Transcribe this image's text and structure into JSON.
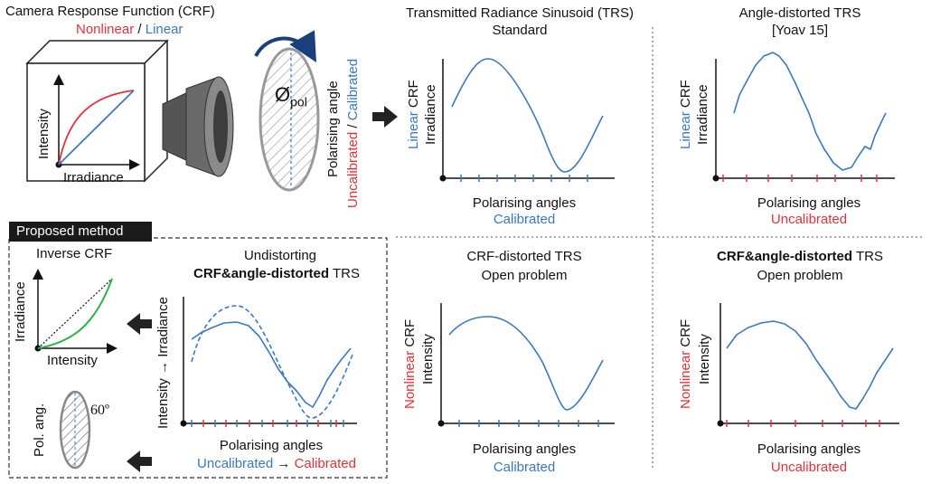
{
  "crf": {
    "title": "Camera Response Function (CRF)",
    "sub_nonlinear": "Nonlinear",
    "sub_sep": " / ",
    "sub_linear": "Linear",
    "y_label": "Intensity",
    "x_label": "Irradiance"
  },
  "polariser": {
    "phi_label": "Ø",
    "phi_sub": "pol",
    "angle_label": "Polarising angle",
    "uncal": "Uncalibrated",
    "sep": " / ",
    "cal": "Calibrated"
  },
  "panels": {
    "standard": {
      "title1": "Transmitted Radiance Sinusoid (TRS)",
      "title2": "Standard",
      "y_crf_prefix": "Linear",
      "y_crf": " CRF",
      "y_quantity": "Irradiance",
      "x_label": "Polarising angles",
      "x_status": "Calibrated"
    },
    "angle": {
      "title1": "Angle-distorted TRS",
      "title2": "[Yoav 15]",
      "y_crf_prefix": "Linear",
      "y_crf": " CRF",
      "y_quantity": "Irradiance",
      "x_label": "Polarising angles",
      "x_status": "Uncalibrated"
    },
    "crf_distorted": {
      "title1": "CRF-distorted TRS",
      "title2": "Open problem",
      "y_crf_prefix": "Nonlinear",
      "y_crf": " CRF",
      "y_quantity": "Intensity",
      "x_label": "Polarising angles",
      "x_status": "Calibrated"
    },
    "both": {
      "title1_bold": "CRF&angle-distorted",
      "title1_rest": " TRS",
      "title2": "Open problem",
      "y_crf_prefix": "Nonlinear",
      "y_crf": " CRF",
      "y_quantity": "Intensity",
      "x_label": "Polarising angles",
      "x_status": "Uncalibrated"
    }
  },
  "proposed": {
    "header": "Proposed method",
    "inverse_crf": "Inverse CRF",
    "inv_y": "Irradiance",
    "inv_x": "Intensity",
    "pol_ang": "Pol. ang.",
    "angle_value": "60º",
    "undistort_title1": "Undistorting",
    "undistort_title2_bold": "CRF&angle-distorted",
    "undistort_title2_rest": " TRS",
    "y_from": "Intensity",
    "y_arrow": " → ",
    "y_to": "Irradiance",
    "x_label": "Polarising angles",
    "x_from": "Uncalibrated",
    "x_arrow": " → ",
    "x_to": "Calibrated"
  },
  "colors": {
    "blue": "#3a78c0",
    "red": "#e8303a",
    "green": "#2db34a"
  }
}
